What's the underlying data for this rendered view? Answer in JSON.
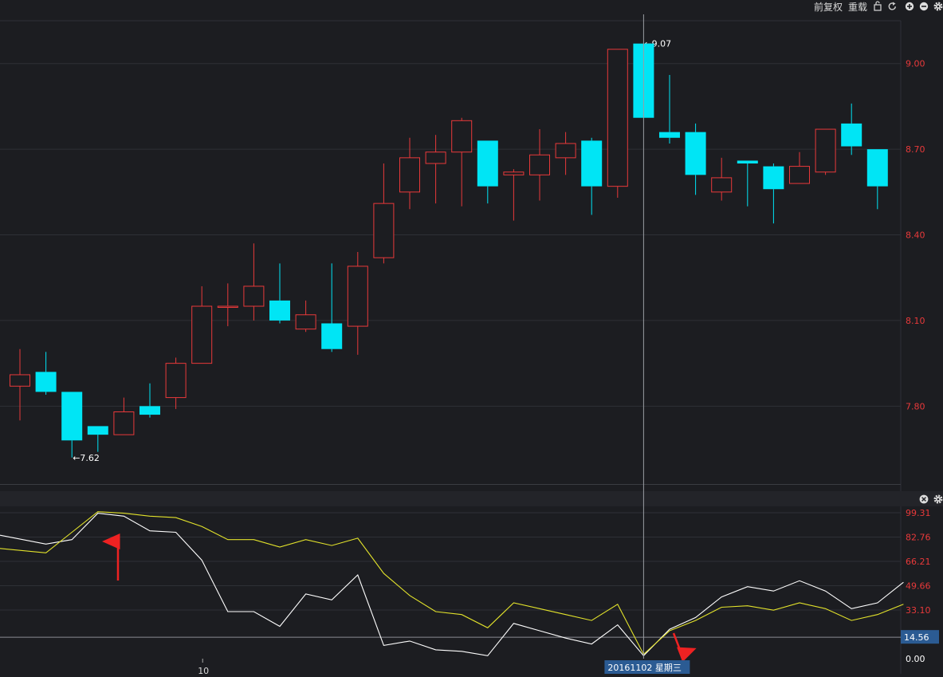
{
  "toolbar": {
    "adjust_label": "前复权",
    "reload_label": "重载",
    "icons": [
      "lock-icon",
      "refresh-icon",
      "zoom-in-icon",
      "zoom-out-icon",
      "gear-icon"
    ]
  },
  "indicator_toolbar": {
    "icons": [
      "close-icon",
      "gear-icon"
    ]
  },
  "crosshair": {
    "date_label": "20161102 星期三",
    "value_label": "14.56",
    "value": 14.56,
    "candle_index": 24
  },
  "x_axis": {
    "tick_label": "10",
    "tick_index": 7
  },
  "colors": {
    "background": "#1c1d21",
    "grid": "#2e3036",
    "up": "#e8393a",
    "down": "#00e5f5",
    "axis_label": "#e8393a",
    "line_k": "#ffffff",
    "line_d": "#e3e32b",
    "annotation_arrow": "#ee2222",
    "date_box": "#2b5b93"
  },
  "chart_data": [
    {
      "type": "candlestick",
      "y_ticks": [
        "9.00",
        "8.70",
        "8.40",
        "8.10",
        "7.80"
      ],
      "ylim": [
        7.53,
        9.15
      ],
      "high_label": "9.07",
      "low_label": "7.62",
      "high_index": 24,
      "low_index": 2,
      "candles": [
        {
          "o": 7.87,
          "c": 7.91,
          "h": 8.0,
          "l": 7.75
        },
        {
          "o": 7.92,
          "c": 7.85,
          "h": 7.99,
          "l": 7.84
        },
        {
          "o": 7.85,
          "c": 7.68,
          "h": 7.85,
          "l": 7.62
        },
        {
          "o": 7.73,
          "c": 7.7,
          "h": 7.73,
          "l": 7.64
        },
        {
          "o": 7.7,
          "c": 7.78,
          "h": 7.83,
          "l": 7.7
        },
        {
          "o": 7.8,
          "c": 7.77,
          "h": 7.88,
          "l": 7.76
        },
        {
          "o": 7.83,
          "c": 7.95,
          "h": 7.97,
          "l": 7.79
        },
        {
          "o": 7.95,
          "c": 8.15,
          "h": 8.22,
          "l": 7.95
        },
        {
          "o": 8.15,
          "c": 8.15,
          "h": 8.23,
          "l": 8.08
        },
        {
          "o": 8.15,
          "c": 8.22,
          "h": 8.37,
          "l": 8.1
        },
        {
          "o": 8.17,
          "c": 8.1,
          "h": 8.3,
          "l": 8.09
        },
        {
          "o": 8.07,
          "c": 8.12,
          "h": 8.17,
          "l": 8.06
        },
        {
          "o": 8.09,
          "c": 8.0,
          "h": 8.3,
          "l": 7.99
        },
        {
          "o": 8.08,
          "c": 8.29,
          "h": 8.34,
          "l": 7.98
        },
        {
          "o": 8.32,
          "c": 8.51,
          "h": 8.65,
          "l": 8.3
        },
        {
          "o": 8.55,
          "c": 8.67,
          "h": 8.74,
          "l": 8.49
        },
        {
          "o": 8.65,
          "c": 8.69,
          "h": 8.75,
          "l": 8.51
        },
        {
          "o": 8.69,
          "c": 8.8,
          "h": 8.81,
          "l": 8.5
        },
        {
          "o": 8.73,
          "c": 8.57,
          "h": 8.73,
          "l": 8.51
        },
        {
          "o": 8.61,
          "c": 8.62,
          "h": 8.63,
          "l": 8.45
        },
        {
          "o": 8.61,
          "c": 8.68,
          "h": 8.77,
          "l": 8.52
        },
        {
          "o": 8.67,
          "c": 8.72,
          "h": 8.76,
          "l": 8.61
        },
        {
          "o": 8.73,
          "c": 8.57,
          "h": 8.74,
          "l": 8.47
        },
        {
          "o": 8.57,
          "c": 9.05,
          "h": 9.05,
          "l": 8.53
        },
        {
          "o": 9.07,
          "c": 8.81,
          "h": 9.07,
          "l": 8.81
        },
        {
          "o": 8.76,
          "c": 8.74,
          "h": 8.96,
          "l": 8.72
        },
        {
          "o": 8.76,
          "c": 8.61,
          "h": 8.79,
          "l": 8.54
        },
        {
          "o": 8.55,
          "c": 8.6,
          "h": 8.67,
          "l": 8.52
        },
        {
          "o": 8.66,
          "c": 8.65,
          "h": 8.66,
          "l": 8.5
        },
        {
          "o": 8.64,
          "c": 8.56,
          "h": 8.65,
          "l": 8.44
        },
        {
          "o": 8.58,
          "c": 8.64,
          "h": 8.69,
          "l": 8.58
        },
        {
          "o": 8.62,
          "c": 8.77,
          "h": 8.77,
          "l": 8.61
        },
        {
          "o": 8.79,
          "c": 8.71,
          "h": 8.86,
          "l": 8.68
        },
        {
          "o": 8.7,
          "c": 8.57,
          "h": 8.7,
          "l": 8.49
        }
      ]
    },
    {
      "type": "line",
      "y_ticks": [
        "99.31",
        "82.76",
        "66.21",
        "49.66",
        "33.10",
        "0.00"
      ],
      "ylim": [
        0,
        99.31
      ],
      "reference_line": 14.56,
      "series": [
        {
          "values": [
            84,
            78,
            81,
            99,
            97,
            87,
            86,
            67,
            32,
            32,
            22,
            44,
            40,
            57,
            9,
            12,
            6,
            5,
            2,
            24,
            19,
            14,
            10,
            23,
            2,
            20,
            28,
            42,
            49,
            46,
            53,
            46,
            34,
            38,
            52
          ]
        },
        {
          "values": [
            75,
            72,
            86,
            100,
            99,
            97,
            96,
            90,
            81,
            81,
            76,
            81,
            77,
            82,
            58,
            43,
            32,
            30,
            21,
            38,
            34,
            30,
            26,
            37,
            3,
            19,
            26,
            35,
            36,
            33,
            38,
            34,
            26,
            30,
            37
          ]
        }
      ]
    }
  ]
}
